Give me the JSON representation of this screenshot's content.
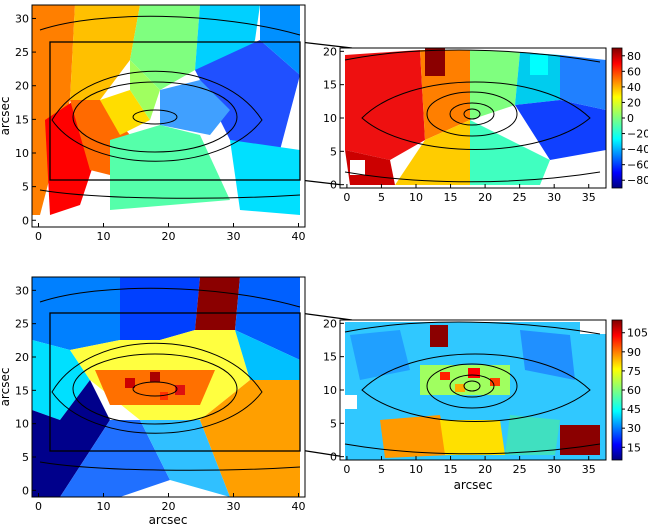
{
  "chart_data": [
    {
      "type": "heatmap",
      "id": "top-left",
      "xlabel": "",
      "ylabel": "arcsec",
      "xlim": [
        -1,
        41
      ],
      "ylim": [
        -1,
        32
      ],
      "xticks": [
        "0",
        "10",
        "20",
        "30",
        "40"
      ],
      "yticks": [
        "0",
        "5",
        "10",
        "15",
        "20",
        "25",
        "30"
      ],
      "inset_box": {
        "x": [
          2,
          40
        ],
        "y": [
          7,
          27.5
        ]
      }
    },
    {
      "type": "heatmap",
      "id": "top-right",
      "xlabel": "",
      "ylabel": "",
      "xlim": [
        -1,
        37.5
      ],
      "ylim": [
        -0.5,
        20.5
      ],
      "xticks": [
        "0",
        "5",
        "10",
        "15",
        "20",
        "25",
        "30",
        "35"
      ],
      "yticks": [
        "0",
        "5",
        "10",
        "15",
        "20"
      ],
      "colorbar": {
        "ticks": [
          "80",
          "60",
          "40",
          "20",
          "0",
          "−20",
          "−40",
          "−60",
          "−80"
        ],
        "range": [
          -90,
          90
        ]
      }
    },
    {
      "type": "heatmap",
      "id": "bottom-left",
      "xlabel": "arcsec",
      "ylabel": "arcsec",
      "xlim": [
        -1,
        41
      ],
      "ylim": [
        -1,
        32
      ],
      "xticks": [
        "0",
        "10",
        "20",
        "30",
        "40"
      ],
      "yticks": [
        "0",
        "5",
        "10",
        "15",
        "20",
        "25",
        "30"
      ],
      "inset_box": {
        "x": [
          2,
          40
        ],
        "y": [
          7,
          27.5
        ]
      }
    },
    {
      "type": "heatmap",
      "id": "bottom-right",
      "xlabel": "arcsec",
      "ylabel": "",
      "xlim": [
        -1,
        37.5
      ],
      "ylim": [
        -0.5,
        20.5
      ],
      "xticks": [
        "0",
        "5",
        "10",
        "15",
        "20",
        "25",
        "30",
        "35"
      ],
      "yticks": [
        "0",
        "5",
        "10",
        "15",
        "20"
      ],
      "colorbar": {
        "ticks": [
          "105",
          "90",
          "75",
          "60",
          "45",
          "30",
          "15"
        ],
        "range": [
          5,
          115
        ]
      }
    }
  ],
  "colormap": [
    "#00007f",
    "#0000ff",
    "#007fff",
    "#00ffff",
    "#7fff7f",
    "#ffff00",
    "#ff7f00",
    "#ff0000",
    "#7f0000"
  ]
}
